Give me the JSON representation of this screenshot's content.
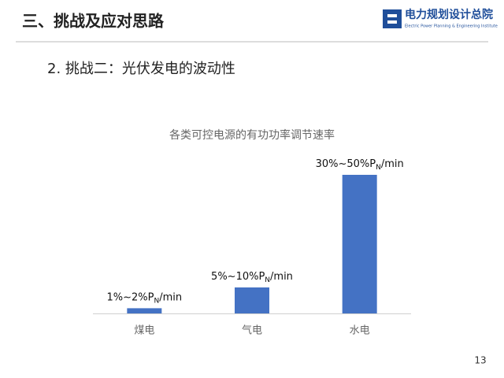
{
  "header": {
    "title": "三、挑战及应对思路",
    "logo_name": "电力规划设计总院",
    "logo_subtitle": "Electric Power Planning & Engineering Institute"
  },
  "subtitle": "2. 挑战二：光伏发电的波动性",
  "page_number": "13",
  "chart_data": {
    "type": "bar",
    "title": "各类可控电源的有功功率调节速率",
    "categories": [
      "煤电",
      "气电",
      "水电"
    ],
    "values": [
      1.5,
      7.5,
      40
    ],
    "value_labels": [
      "1%~2%P",
      "5%~10%P",
      "30%~50%P"
    ],
    "value_label_subscript": "N",
    "value_label_suffix": "/min",
    "color": "#4472c4"
  }
}
